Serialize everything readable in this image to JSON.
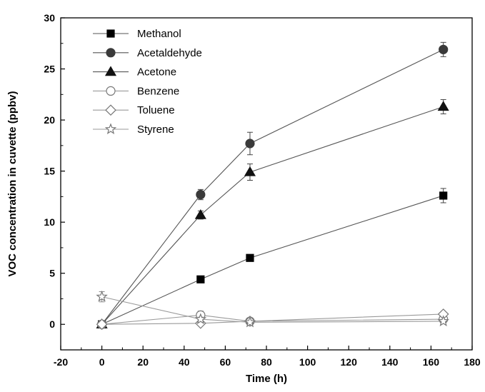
{
  "chart_data": {
    "type": "line",
    "xlabel": "Time (h)",
    "ylabel": "VOC concentration in cuvette (ppbv)",
    "xlim": [
      -20,
      180
    ],
    "ylim": [
      -2.5,
      30
    ],
    "xticks": [
      -20,
      0,
      20,
      40,
      60,
      80,
      100,
      120,
      140,
      160,
      180
    ],
    "yticks": [
      0,
      5,
      10,
      15,
      20,
      25,
      30
    ],
    "grid": false,
    "legend_position": "top-left",
    "series": [
      {
        "name": "Methanol",
        "marker": "square",
        "filled": true,
        "color": "#000000",
        "x": [
          0,
          48,
          72,
          166
        ],
        "y": [
          0,
          4.4,
          6.5,
          12.6
        ],
        "err": [
          0.2,
          0.3,
          0.2,
          0.7
        ]
      },
      {
        "name": "Acetaldehyde",
        "marker": "circle",
        "filled": true,
        "color": "#3a3a3a",
        "x": [
          0,
          48,
          72,
          166
        ],
        "y": [
          0,
          12.7,
          17.7,
          26.9
        ],
        "err": [
          0.2,
          0.5,
          1.1,
          0.7
        ]
      },
      {
        "name": "Acetone",
        "marker": "triangle",
        "filled": true,
        "color": "#111111",
        "x": [
          0,
          48,
          72,
          166
        ],
        "y": [
          0,
          10.7,
          14.9,
          21.3
        ],
        "err": [
          0.2,
          0.4,
          0.8,
          0.7
        ]
      },
      {
        "name": "Benzene",
        "marker": "circle",
        "filled": false,
        "color": "#666666",
        "x": [
          0,
          48,
          72,
          166
        ],
        "y": [
          0,
          0.9,
          0.3,
          0.5
        ],
        "err": [
          0.2,
          0.4,
          0.2,
          0.2
        ]
      },
      {
        "name": "Toluene",
        "marker": "diamond",
        "filled": false,
        "color": "#666666",
        "x": [
          0,
          48,
          72,
          166
        ],
        "y": [
          0,
          0.1,
          0.3,
          1.0
        ],
        "err": [
          0.1,
          0.1,
          0.1,
          0.2
        ]
      },
      {
        "name": "Styrene",
        "marker": "star",
        "filled": false,
        "color": "#666666",
        "x": [
          0,
          48,
          72,
          166
        ],
        "y": [
          2.7,
          0.5,
          0.2,
          0.3
        ],
        "err": [
          0.5,
          0.2,
          0.1,
          0.1
        ]
      }
    ]
  }
}
